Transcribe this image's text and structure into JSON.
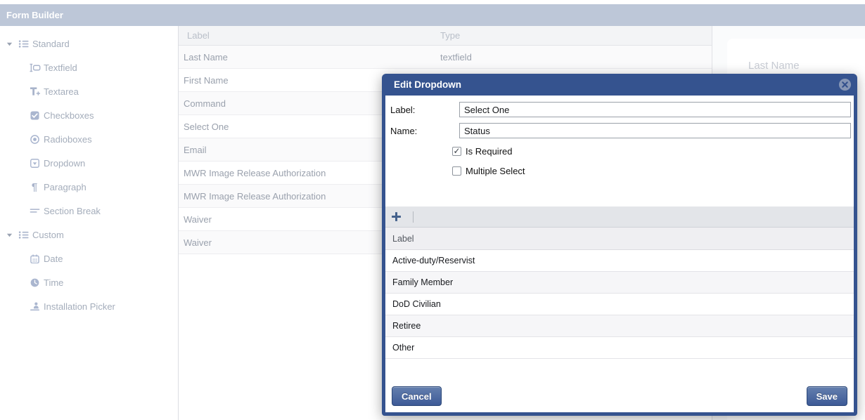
{
  "app": {
    "title": "Form Builder"
  },
  "colors": {
    "modal_blue": "#35538f",
    "topbar": "#bdc7d8",
    "button_blue": "#3d5a97"
  },
  "sidebar": {
    "groups": [
      {
        "label": "Standard",
        "caret": "caret-down-icon",
        "icon": "list-icon",
        "items": [
          {
            "label": "Textfield",
            "icon": "textfield-icon"
          },
          {
            "label": "Textarea",
            "icon": "textarea-icon"
          },
          {
            "label": "Checkboxes",
            "icon": "checkbox-icon"
          },
          {
            "label": "Radioboxes",
            "icon": "radio-icon"
          },
          {
            "label": "Dropdown",
            "icon": "dropdown-icon"
          },
          {
            "label": "Paragraph",
            "icon": "paragraph-icon"
          },
          {
            "label": "Section Break",
            "icon": "section-break-icon"
          }
        ]
      },
      {
        "label": "Custom",
        "caret": "caret-down-icon",
        "icon": "list-icon",
        "items": [
          {
            "label": "Date",
            "icon": "calendar-icon"
          },
          {
            "label": "Time",
            "icon": "clock-icon"
          },
          {
            "label": "Installation Picker",
            "icon": "installation-picker-icon"
          }
        ]
      }
    ]
  },
  "form_table": {
    "columns": [
      "Label",
      "Type"
    ],
    "rows": [
      {
        "label": "Last Name",
        "type": "textfield"
      },
      {
        "label": "First Name",
        "type": ""
      },
      {
        "label": "Command",
        "type": ""
      },
      {
        "label": "Select One",
        "type": ""
      },
      {
        "label": "Email",
        "type": ""
      },
      {
        "label": "MWR Image Release Authorization",
        "type": ""
      },
      {
        "label": "MWR Image Release Authorization",
        "type": ""
      },
      {
        "label": "Waiver",
        "type": ""
      },
      {
        "label": "Waiver",
        "type": ""
      }
    ]
  },
  "preview_panel": {
    "field_label": "Last Name"
  },
  "modal": {
    "title": "Edit Dropdown",
    "fields": {
      "label": {
        "label": "Label:",
        "value": "Select One"
      },
      "name": {
        "label": "Name:",
        "value": "Status"
      }
    },
    "checkboxes": [
      {
        "label": "Is Required",
        "checked": true
      },
      {
        "label": "Multiple Select",
        "checked": false
      }
    ],
    "options_table": {
      "column": "Label",
      "rows": [
        "Active-duty/Reservist",
        "Family Member",
        "DoD Civilian",
        "Retiree",
        "Other"
      ]
    },
    "buttons": {
      "cancel": "Cancel",
      "save": "Save"
    }
  }
}
